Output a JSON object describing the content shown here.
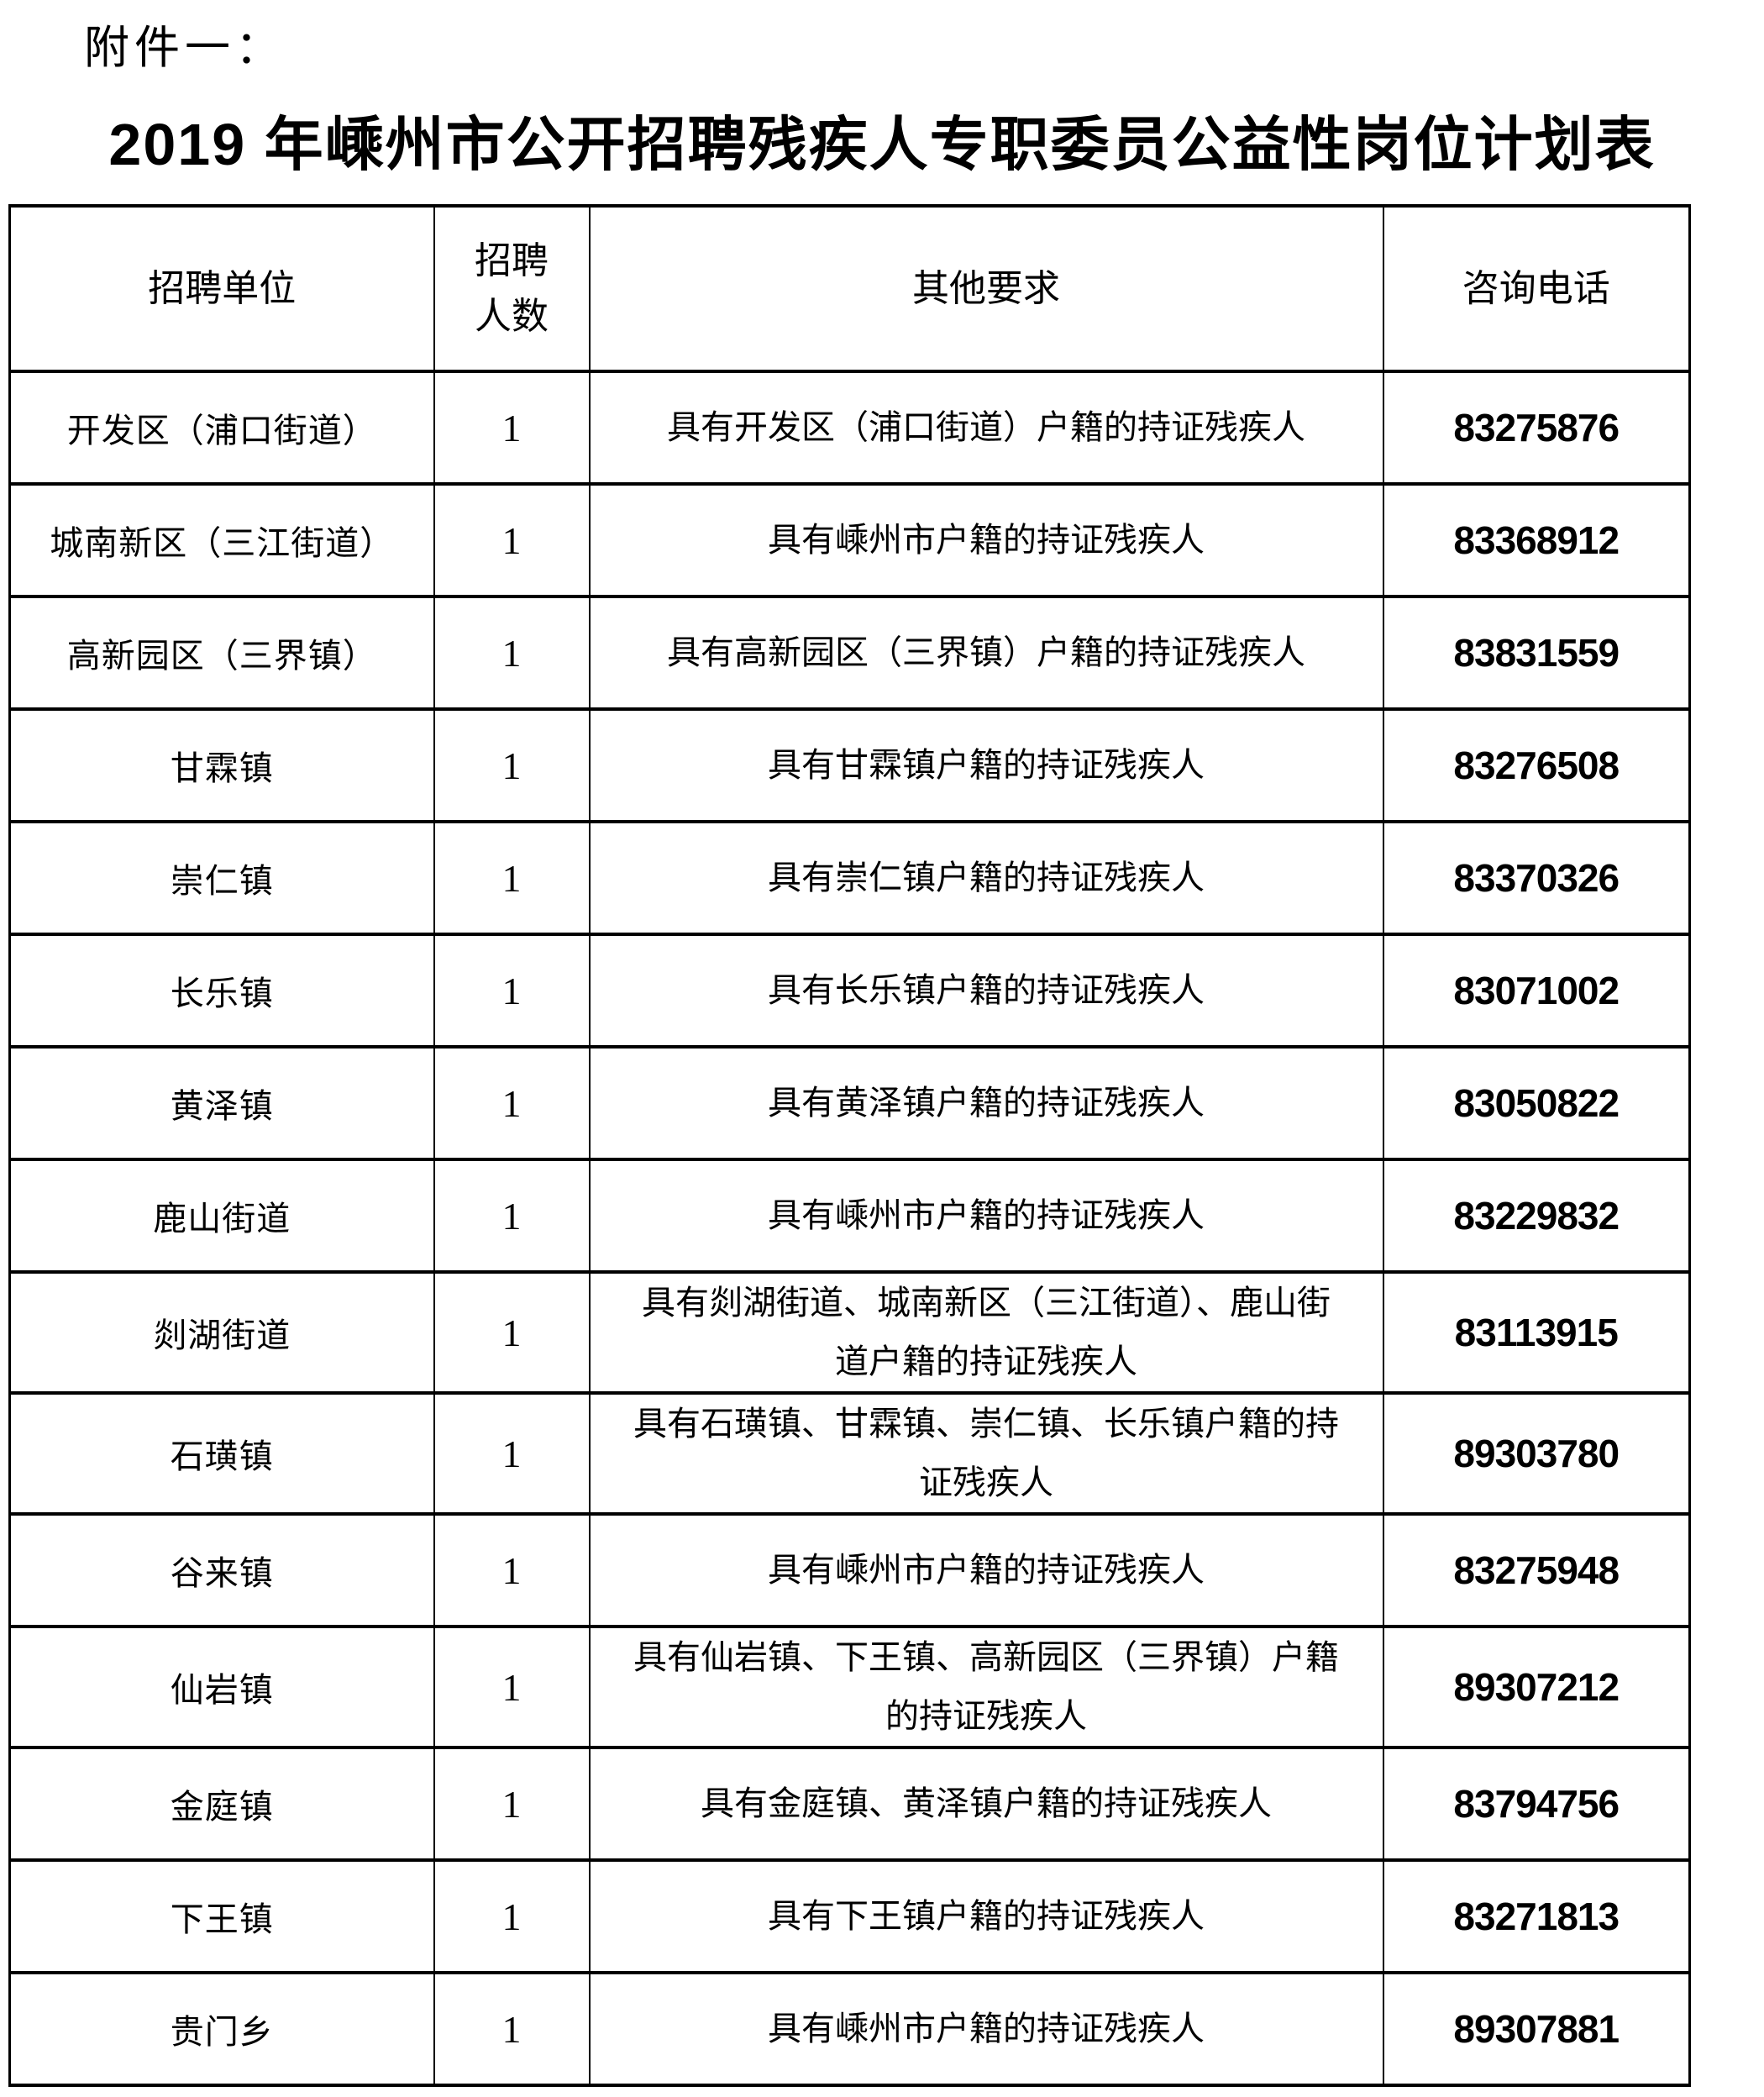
{
  "attachment_label": "附件一：",
  "title": "2019 年嵊州市公开招聘残疾人专职委员公益性岗位计划表",
  "colors": {
    "text": "#000000",
    "background": "#ffffff",
    "border": "#000000"
  },
  "table": {
    "headers": [
      "招聘单位",
      "招聘人数",
      "其他要求",
      "咨询电话"
    ],
    "rows": [
      {
        "unit": "开发区（浦口街道）",
        "count": "1",
        "requirement": "具有开发区（浦口街道）户籍的持证残疾人",
        "phone": "83275876"
      },
      {
        "unit": "城南新区（三江街道）",
        "count": "1",
        "requirement": "具有嵊州市户籍的持证残疾人",
        "phone": "83368912"
      },
      {
        "unit": "高新园区（三界镇）",
        "count": "1",
        "requirement": "具有高新园区（三界镇）户籍的持证残疾人",
        "phone": "83831559"
      },
      {
        "unit": "甘霖镇",
        "count": "1",
        "requirement": "具有甘霖镇户籍的持证残疾人",
        "phone": "83276508"
      },
      {
        "unit": "崇仁镇",
        "count": "1",
        "requirement": "具有崇仁镇户籍的持证残疾人",
        "phone": "83370326"
      },
      {
        "unit": "长乐镇",
        "count": "1",
        "requirement": "具有长乐镇户籍的持证残疾人",
        "phone": "83071002"
      },
      {
        "unit": "黄泽镇",
        "count": "1",
        "requirement": "具有黄泽镇户籍的持证残疾人",
        "phone": "83050822"
      },
      {
        "unit": "鹿山街道",
        "count": "1",
        "requirement": "具有嵊州市户籍的持证残疾人",
        "phone": "83229832"
      },
      {
        "unit": "剡湖街道",
        "count": "1",
        "requirement": "具有剡湖街道、城南新区（三江街道）、鹿山街道户籍的持证残疾人",
        "phone": "83113915"
      },
      {
        "unit": "石璜镇",
        "count": "1",
        "requirement": "具有石璜镇、甘霖镇、崇仁镇、长乐镇户籍的持证残疾人",
        "phone": "89303780"
      },
      {
        "unit": "谷来镇",
        "count": "1",
        "requirement": "具有嵊州市户籍的持证残疾人",
        "phone": "83275948"
      },
      {
        "unit": "仙岩镇",
        "count": "1",
        "requirement": "具有仙岩镇、下王镇、高新园区（三界镇）户籍的持证残疾人",
        "phone": "89307212"
      },
      {
        "unit": "金庭镇",
        "count": "1",
        "requirement": "具有金庭镇、黄泽镇户籍的持证残疾人",
        "phone": "83794756"
      },
      {
        "unit": "下王镇",
        "count": "1",
        "requirement": "具有下王镇户籍的持证残疾人",
        "phone": "83271813"
      },
      {
        "unit": "贵门乡",
        "count": "1",
        "requirement": "具有嵊州市户籍的持证残疾人",
        "phone": "89307881"
      }
    ]
  }
}
